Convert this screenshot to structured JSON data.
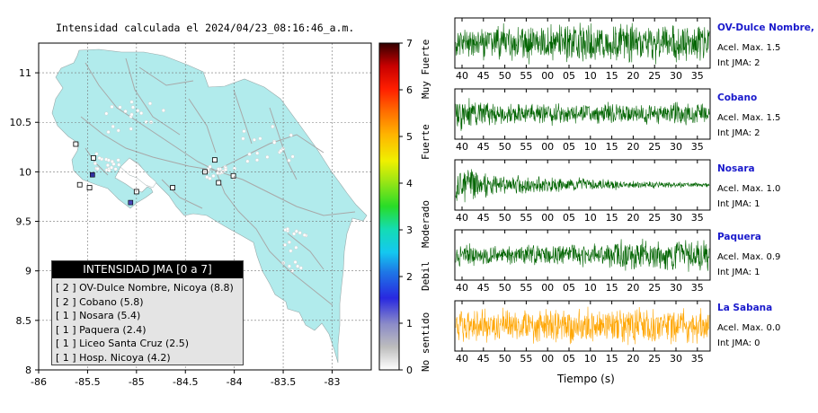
{
  "map": {
    "title": "Intensidad calculada el 2024/04/23_08:16:46_a.m.",
    "lon_ticks": [
      "-86",
      "-85.5",
      "-85",
      "-84.5",
      "-84",
      "-83.5",
      "-83"
    ],
    "lat_ticks": [
      "11",
      "10.5",
      "10",
      "9.5",
      "9",
      "8.5",
      "8"
    ],
    "xlim": [
      -86,
      -82.6
    ],
    "ylim": [
      8,
      11.3
    ],
    "land_color": "#b1ebec",
    "stations": [
      {
        "lon": -85.45,
        "lat": 9.97,
        "color": "#3030a0"
      },
      {
        "lon": -85.06,
        "lat": 9.69,
        "color": "#4848b8"
      }
    ],
    "markers": [
      {
        "lon": -85.62,
        "lat": 10.28
      },
      {
        "lon": -85.44,
        "lat": 10.14
      },
      {
        "lon": -85.58,
        "lat": 9.87
      },
      {
        "lon": -85.48,
        "lat": 9.84
      },
      {
        "lon": -85.0,
        "lat": 9.8
      },
      {
        "lon": -84.63,
        "lat": 9.84
      },
      {
        "lon": -84.3,
        "lat": 10.0
      },
      {
        "lon": -84.2,
        "lat": 10.12
      },
      {
        "lon": -84.01,
        "lat": 9.96
      },
      {
        "lon": -84.16,
        "lat": 9.89
      }
    ]
  },
  "legend": {
    "header": "INTENSIDAD JMA [0 a 7]",
    "rows": [
      "[ 2 ] OV-Dulce Nombre, Nicoya (8.8)",
      "[ 2 ] Cobano (5.8)",
      "[ 1 ] Nosara (5.4)",
      "[ 1 ] Paquera (2.4)",
      "[ 1 ] Liceo Santa Cruz (2.5)",
      "[ 1 ] Hosp. Nicoya (4.2)"
    ]
  },
  "colorbar": {
    "ticks": [
      "0",
      "1",
      "2",
      "3",
      "4",
      "5",
      "6",
      "7"
    ],
    "labels": [
      "Muy Fuerte",
      "Fuerte",
      "Moderado",
      "Debil",
      "No sentido"
    ],
    "colors": [
      "#ffffff",
      "#6e6ef0",
      "#1e64e6",
      "#14d2f0",
      "#2ce62c",
      "#ffff00",
      "#ff8c00",
      "#ff0000",
      "#5a0000"
    ]
  },
  "traces": {
    "xlabel": "Tiempo (s)",
    "tick_labels": [
      "40",
      "45",
      "50",
      "55",
      "00",
      "05",
      "10",
      "15",
      "20",
      "25",
      "30",
      "35"
    ],
    "stations": [
      {
        "name": "OV-Dulce Nombre, Nicoya",
        "acel": "Acel. Max. 1.5",
        "jma": "Int JMA: 2",
        "color": "#006400"
      },
      {
        "name": "Cobano",
        "acel": "Acel. Max. 1.5",
        "jma": "Int JMA: 2",
        "color": "#006400"
      },
      {
        "name": "Nosara",
        "acel": "Acel. Max. 1.0",
        "jma": "Int JMA: 1",
        "color": "#006400"
      },
      {
        "name": "Paquera",
        "acel": "Acel. Max. 0.9",
        "jma": "Int JMA: 1",
        "color": "#006400"
      },
      {
        "name": "La Sabana",
        "acel": "Acel. Max. 0.0",
        "jma": "Int JMA: 0",
        "color": "#ffa500"
      }
    ]
  },
  "chart_data": [
    {
      "type": "scatter",
      "title": "Intensidad calculada el 2024/04/23_08:16:46_a.m.",
      "xlim": [
        -86,
        -82.6
      ],
      "ylim": [
        8,
        11.3
      ],
      "x_ticks": [
        -86,
        -85.5,
        -85,
        -84.5,
        -84,
        -83.5,
        -83
      ],
      "y_ticks": [
        8,
        8.5,
        9,
        9.5,
        10,
        10.5,
        11
      ],
      "grid": true,
      "legend": "bottom-left"
    },
    {
      "type": "line",
      "xlabel": "Tiempo (s)",
      "series": [
        {
          "name": "OV-Dulce Nombre, Nicoya",
          "acel_max": 1.5,
          "int_jma": 2
        },
        {
          "name": "Cobano",
          "acel_max": 1.5,
          "int_jma": 2
        },
        {
          "name": "Nosara",
          "acel_max": 1.0,
          "int_jma": 1
        },
        {
          "name": "Paquera",
          "acel_max": 0.9,
          "int_jma": 1
        },
        {
          "name": "La Sabana",
          "acel_max": 0.0,
          "int_jma": 0
        }
      ]
    }
  ]
}
